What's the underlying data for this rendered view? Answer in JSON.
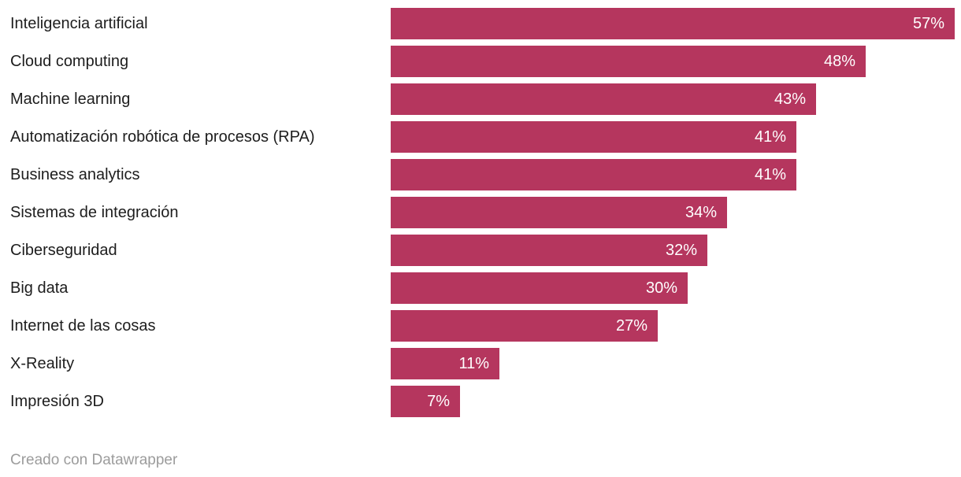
{
  "chart_data": {
    "type": "bar",
    "orientation": "horizontal",
    "categories": [
      "Inteligencia artificial",
      "Cloud computing",
      "Machine learning",
      "Automatización robótica de procesos (RPA)",
      "Business analytics",
      "Sistemas de integración",
      "Ciberseguridad",
      "Big data",
      "Internet de las cosas",
      "X-Reality",
      "Impresión 3D"
    ],
    "values": [
      57,
      48,
      43,
      41,
      41,
      34,
      32,
      30,
      27,
      11,
      7
    ],
    "value_labels": [
      "57%",
      "48%",
      "43%",
      "41%",
      "41%",
      "34%",
      "32%",
      "30%",
      "27%",
      "11%",
      "7%"
    ],
    "value_unit": "%",
    "title": "",
    "xlabel": "",
    "ylabel": "",
    "xlim": [
      0,
      57.6
    ],
    "grid": false,
    "legend": false,
    "bar_color": "#b5365e",
    "value_label_color": "#ffffff",
    "category_label_color": "#1d1d1d",
    "value_labels_position": "inside-end"
  },
  "footer": {
    "attribution": "Creado con Datawrapper"
  }
}
